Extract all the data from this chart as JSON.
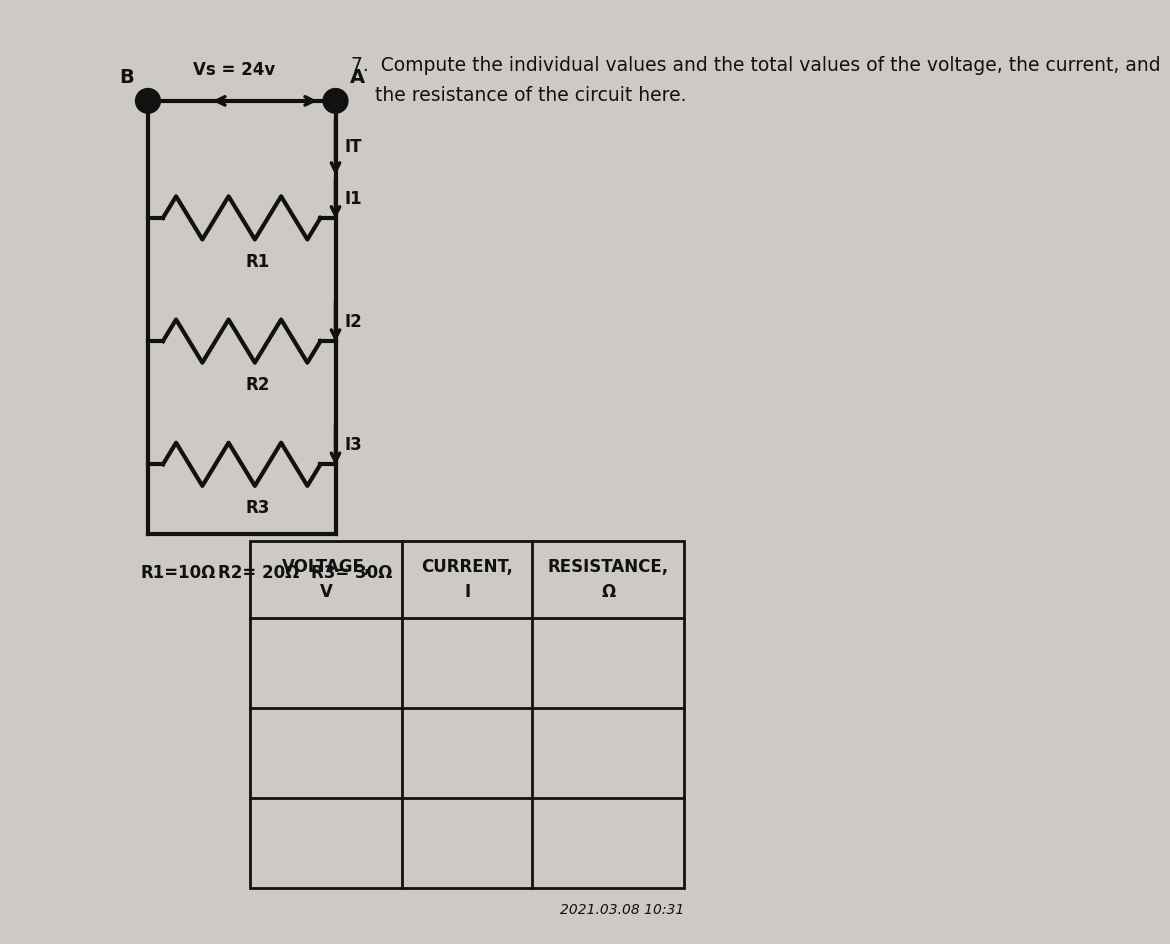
{
  "bg_color": "#cdc9c4",
  "title_text": "7.  Compute the individual values and the total values of the voltage, the current, and\n    the resistance of the circuit here.",
  "timestamp": "2021.03.08 10:31",
  "vs_label": "Vs = 24v",
  "node_A": "A",
  "node_B": "B",
  "IT_label": "IT",
  "I1_label": "I1",
  "I2_label": "I2",
  "I3_label": "I3",
  "R1_label": "R1",
  "R2_label": "R2",
  "R3_label": "R3",
  "R1_val": "R1=10Ω",
  "R2_val": "R2= 20Ω",
  "R3_val": "R3= 30Ω",
  "table_col1": "VOLTAGE,\nV",
  "table_col2": "CURRENT,\nI",
  "table_col3": "RESISTANCE,\nΩ",
  "table_rows": 4,
  "text_color": "#111111"
}
